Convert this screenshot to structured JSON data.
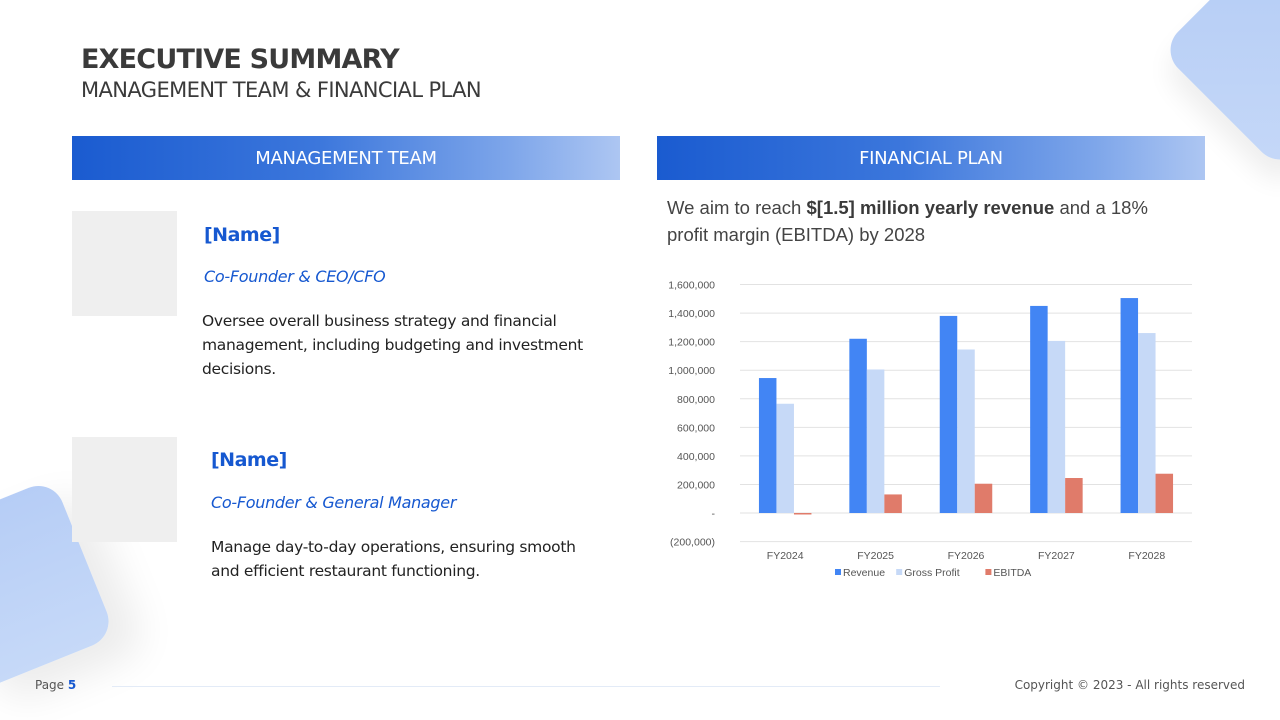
{
  "header": {
    "title": "EXECUTIVE SUMMARY",
    "subtitle": "MANAGEMENT TEAM & FINANCIAL PLAN"
  },
  "management": {
    "section_title": "MANAGEMENT TEAM",
    "members": [
      {
        "name": "[Name]",
        "role": "Co-Founder & CEO/CFO",
        "description": "Oversee overall business strategy and financial management, including budgeting and investment decisions."
      },
      {
        "name": "[Name]",
        "role": "Co-Founder & General Manager",
        "description": "Manage day-to-day operations, ensuring smooth and efficient restaurant functioning."
      }
    ]
  },
  "financial": {
    "section_title": "FINANCIAL PLAN",
    "intro_prefix": "We aim to reach ",
    "intro_bold": "$[1.5] million yearly revenue",
    "intro_suffix": " and a 18% profit margin (EBITDA) by 2028"
  },
  "chart_data": {
    "type": "bar",
    "title": "",
    "xlabel": "",
    "ylabel": "",
    "categories": [
      "FY2024",
      "FY2025",
      "FY2026",
      "FY2027",
      "FY2028"
    ],
    "series": [
      {
        "name": "Revenue",
        "color": "#4285f4",
        "values": [
          945000,
          1220000,
          1380000,
          1450000,
          1505000
        ]
      },
      {
        "name": "Gross Profit",
        "color": "#c6d9f7",
        "values": [
          765000,
          1005000,
          1145000,
          1205000,
          1260000
        ]
      },
      {
        "name": "EBITDA",
        "color": "#e07b6a",
        "values": [
          -10000,
          130000,
          205000,
          245000,
          275000
        ]
      }
    ],
    "ylim": [
      -200000,
      1600000
    ],
    "yticks": [
      1600000,
      1400000,
      1200000,
      1000000,
      800000,
      600000,
      400000,
      200000,
      0,
      -200000
    ],
    "ytick_labels": [
      "1,600,000",
      "1,400,000",
      "1,200,000",
      "1,000,000",
      "800,000",
      "600,000",
      "400,000",
      "200,000",
      "-",
      "(200,000)"
    ],
    "grid": true,
    "legend_position": "bottom"
  },
  "footer": {
    "page_label": "Page",
    "page_number": "5",
    "copyright": "Copyright © 2023 - All rights reserved"
  },
  "colors": {
    "accent": "#1658d0",
    "header_gradient_start": "#1a5bd0",
    "header_gradient_end": "#adc6f2"
  }
}
